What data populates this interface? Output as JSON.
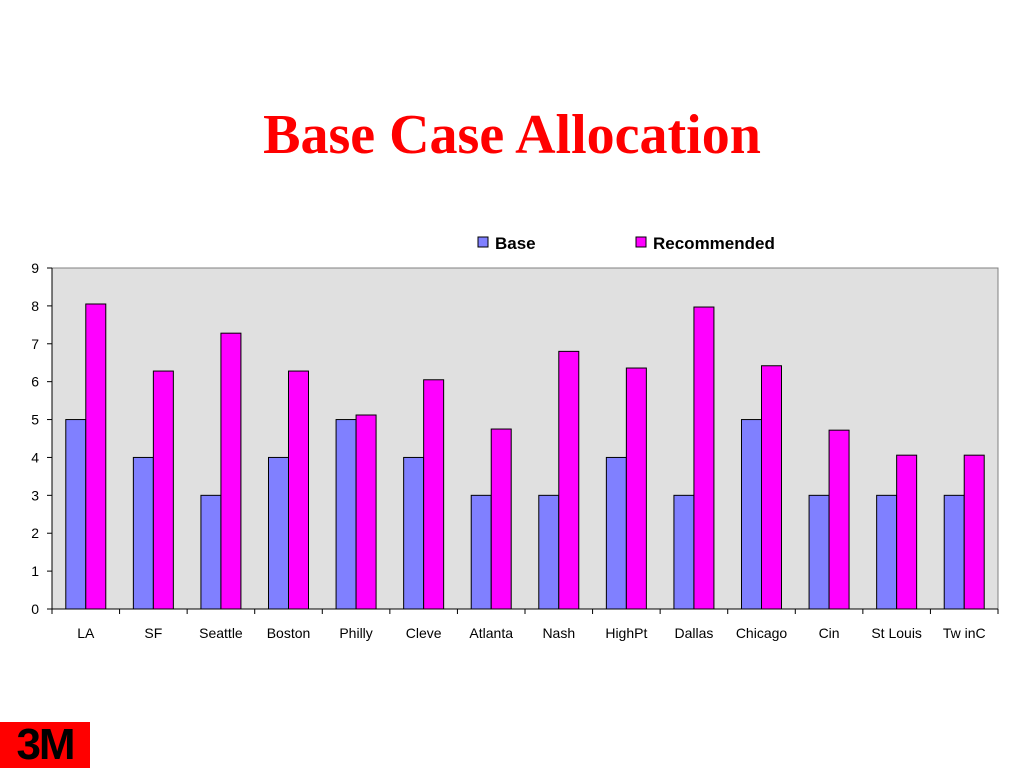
{
  "slide": {
    "title": "Base Case Allocation",
    "logo_text": "3M"
  },
  "colors": {
    "base": "#8080ff",
    "recommended": "#ff00ff",
    "title": "#ff0000",
    "plot_bg": "#e0e0e0"
  },
  "chart_data": {
    "type": "bar",
    "title": "Base Case Allocation",
    "xlabel": "",
    "ylabel": "",
    "ylim": [
      0,
      9
    ],
    "yticks": [
      0,
      1,
      2,
      3,
      4,
      5,
      6,
      7,
      8,
      9
    ],
    "grid": false,
    "legend_position": "top",
    "categories": [
      "LA",
      "SF",
      "Seattle",
      "Boston",
      "Philly",
      "Cleve",
      "Atlanta",
      "Nash",
      "HighPt",
      "Dallas",
      "Chicago",
      "Cin",
      "St Louis",
      "Tw inC"
    ],
    "series": [
      {
        "name": "Base",
        "color": "#8080ff",
        "values": [
          5,
          4,
          3,
          4,
          5,
          4,
          3,
          3,
          4,
          3,
          5,
          3,
          3,
          3
        ]
      },
      {
        "name": "Recommended",
        "color": "#ff00ff",
        "values": [
          8.05,
          6.28,
          7.28,
          6.28,
          5.12,
          6.05,
          4.75,
          6.8,
          6.36,
          7.97,
          6.42,
          4.72,
          4.06,
          4.06
        ]
      }
    ]
  }
}
